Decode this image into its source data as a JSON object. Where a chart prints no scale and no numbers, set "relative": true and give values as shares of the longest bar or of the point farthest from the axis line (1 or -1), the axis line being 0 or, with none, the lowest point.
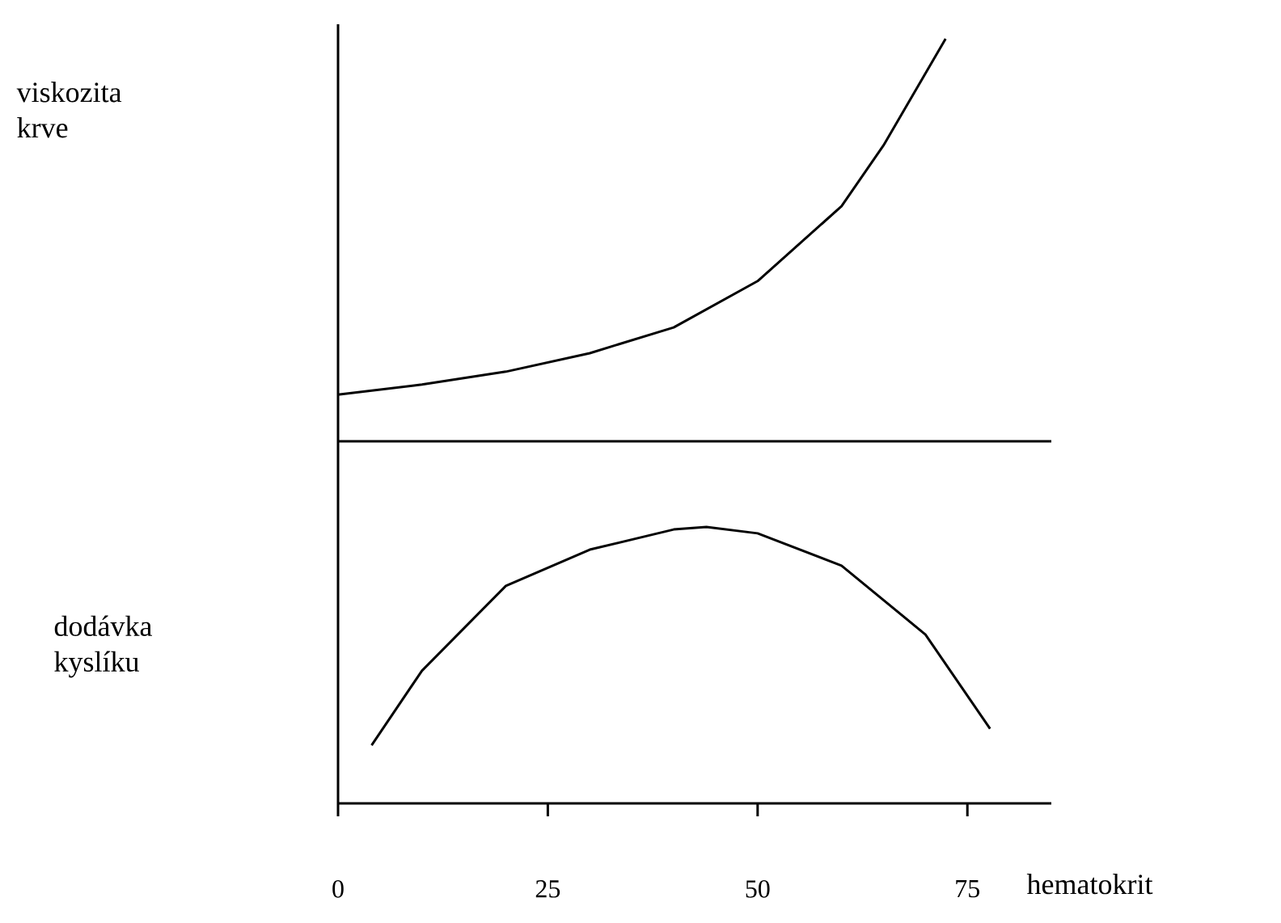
{
  "chart_data": [
    {
      "type": "line",
      "ylabel": "viskozita krve",
      "relative": true,
      "xlim": [
        0,
        85
      ],
      "tick_labels": false,
      "series": [
        {
          "color": "#000000",
          "x": [
            0,
            10,
            20,
            30,
            40,
            50,
            60,
            65,
            72.4
          ],
          "values": [
            0.116,
            0.141,
            0.173,
            0.219,
            0.283,
            0.398,
            0.584,
            0.735,
            1
          ]
        }
      ]
    },
    {
      "type": "line",
      "ylabel": "dodávka kyslíku",
      "xlabel": "hematokrit",
      "relative": true,
      "xlim": [
        0,
        85
      ],
      "xticks": [
        0,
        25,
        50,
        75
      ],
      "tick_labels": "x",
      "series": [
        {
          "color": "#000000",
          "x": [
            4,
            10,
            20,
            30,
            40,
            43.9,
            50,
            60,
            70,
            77.7
          ],
          "values": [
            0.21,
            0.48,
            0.787,
            0.918,
            0.991,
            1,
            0.977,
            0.86,
            0.611,
            0.27
          ]
        }
      ]
    }
  ]
}
